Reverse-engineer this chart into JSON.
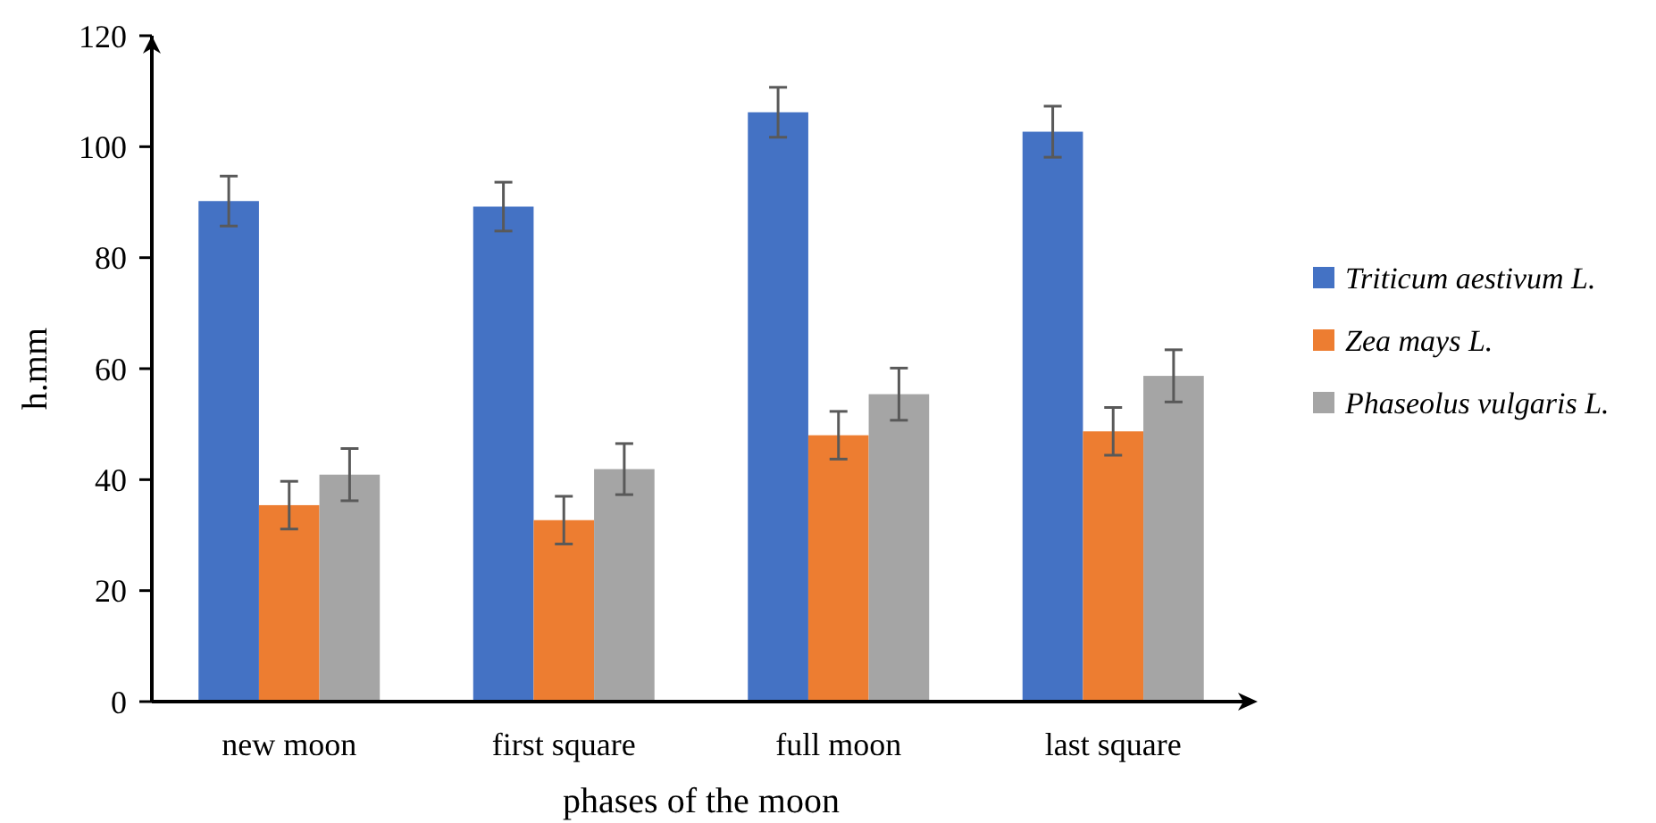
{
  "chart_data": {
    "type": "bar",
    "xlabel": "phases of the moon",
    "ylabel": "h.mm",
    "categories": [
      "new moon",
      "first square",
      "full moon",
      "last square"
    ],
    "series": [
      {
        "name": "Triticum aestivum L.",
        "color": "#4472c4",
        "values": [
          90.2,
          89.2,
          106.2,
          102.7
        ],
        "errors": [
          4.5,
          4.4,
          4.5,
          4.6
        ]
      },
      {
        "name": "Zea mays L.",
        "color": "#ed7d31",
        "values": [
          35.4,
          32.7,
          48.0,
          48.7
        ],
        "errors": [
          4.3,
          4.3,
          4.3,
          4.3
        ]
      },
      {
        "name": "Phaseolus vulgaris L.",
        "color": "#a5a5a5",
        "values": [
          40.9,
          41.9,
          55.4,
          58.7
        ],
        "errors": [
          4.7,
          4.6,
          4.7,
          4.7
        ]
      }
    ],
    "ylim": [
      0,
      120
    ],
    "yticks": [
      0,
      20,
      40,
      60,
      80,
      100,
      120
    ],
    "grid": false,
    "legend": "right"
  }
}
